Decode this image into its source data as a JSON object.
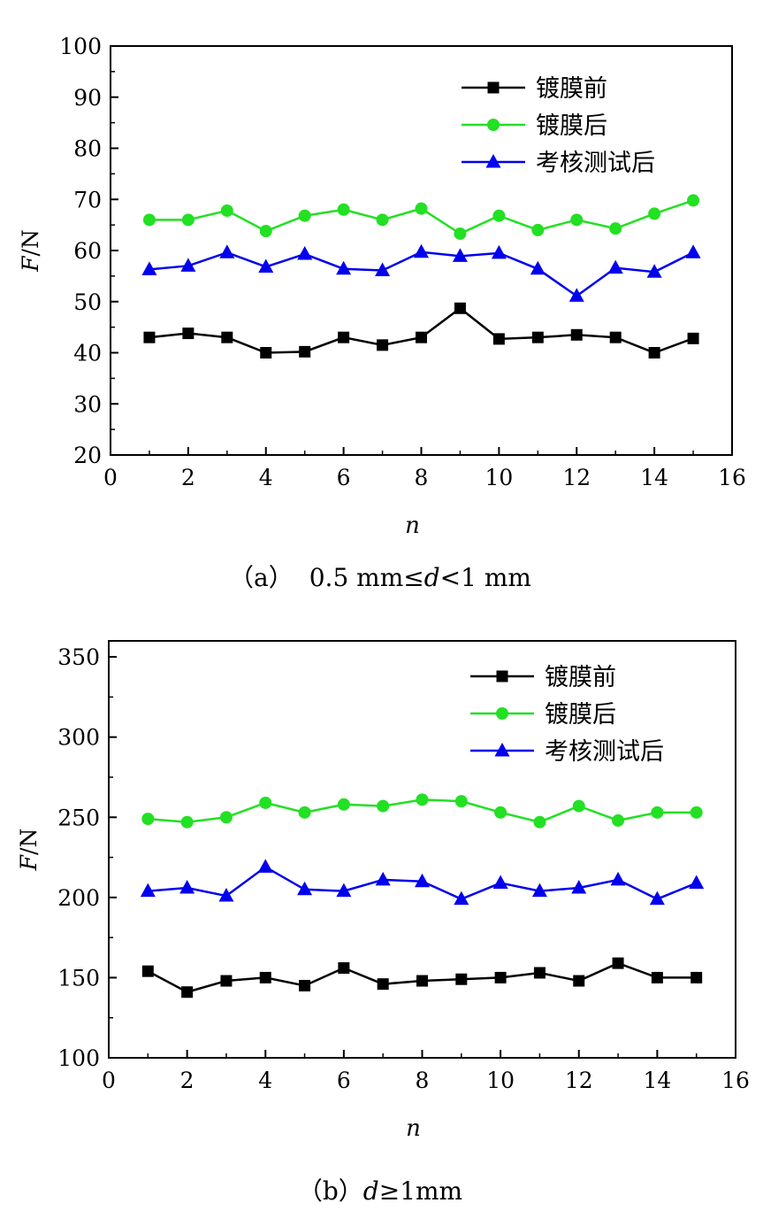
{
  "chart_data": [
    {
      "type": "line",
      "caption_prefix": "（a）",
      "caption_main": "0.5 mm≤",
      "caption_var": "d",
      "caption_suffix": "<1 mm",
      "xlabel": "n",
      "ylabel_var": "F",
      "ylabel_unit": "/N",
      "xlim": [
        0,
        16
      ],
      "ylim": [
        20,
        100
      ],
      "xticks": [
        0,
        2,
        4,
        6,
        8,
        10,
        12,
        14,
        16
      ],
      "yticks": [
        20,
        30,
        40,
        50,
        60,
        70,
        80,
        90,
        100
      ],
      "legend_position": "top-right",
      "x": [
        1,
        2,
        3,
        4,
        5,
        6,
        7,
        8,
        9,
        10,
        11,
        12,
        13,
        14,
        15
      ],
      "series": [
        {
          "name": "镀膜前",
          "marker": "square",
          "color": "#000000",
          "values": [
            43.0,
            43.8,
            43.0,
            40.0,
            40.2,
            43.0,
            41.5,
            43.0,
            48.7,
            42.7,
            43.0,
            43.5,
            43.0,
            40.0,
            42.8
          ]
        },
        {
          "name": "镀膜后",
          "marker": "circle",
          "color": "#22e022",
          "values": [
            66.0,
            66.0,
            67.8,
            63.8,
            66.8,
            68.0,
            66.0,
            68.2,
            63.3,
            66.8,
            64.0,
            66.0,
            64.3,
            67.2,
            69.8
          ]
        },
        {
          "name": "考核测试后",
          "marker": "triangle",
          "color": "#0000ee",
          "values": [
            56.3,
            57.0,
            59.6,
            56.8,
            59.3,
            56.4,
            56.1,
            59.7,
            58.9,
            59.5,
            56.4,
            51.1,
            56.6,
            55.8,
            59.6
          ]
        }
      ]
    },
    {
      "type": "line",
      "caption_prefix": "（b）",
      "caption_main": "",
      "caption_var": "d",
      "caption_suffix": "≥1mm",
      "xlabel": "n",
      "ylabel_var": "F",
      "ylabel_unit": "/N",
      "xlim": [
        0,
        16
      ],
      "ylim": [
        100,
        360
      ],
      "xticks": [
        0,
        2,
        4,
        6,
        8,
        10,
        12,
        14,
        16
      ],
      "yticks": [
        100,
        150,
        200,
        250,
        300,
        350
      ],
      "legend_position": "top-right",
      "x": [
        1,
        2,
        3,
        4,
        5,
        6,
        7,
        8,
        9,
        10,
        11,
        12,
        13,
        14,
        15
      ],
      "series": [
        {
          "name": "镀膜前",
          "marker": "square",
          "color": "#000000",
          "values": [
            154,
            141,
            148,
            150,
            145,
            156,
            146,
            148,
            149,
            150,
            153,
            148,
            159,
            150,
            150
          ]
        },
        {
          "name": "镀膜后",
          "marker": "circle",
          "color": "#22e022",
          "values": [
            249,
            247,
            250,
            259,
            253,
            258,
            257,
            261,
            260,
            253,
            247,
            257,
            248,
            253,
            253
          ]
        },
        {
          "name": "考核测试后",
          "marker": "triangle",
          "color": "#0000ee",
          "values": [
            204,
            206,
            201,
            219,
            205,
            204,
            211,
            210,
            199,
            209,
            204,
            206,
            211,
            199,
            209
          ]
        }
      ]
    }
  ]
}
